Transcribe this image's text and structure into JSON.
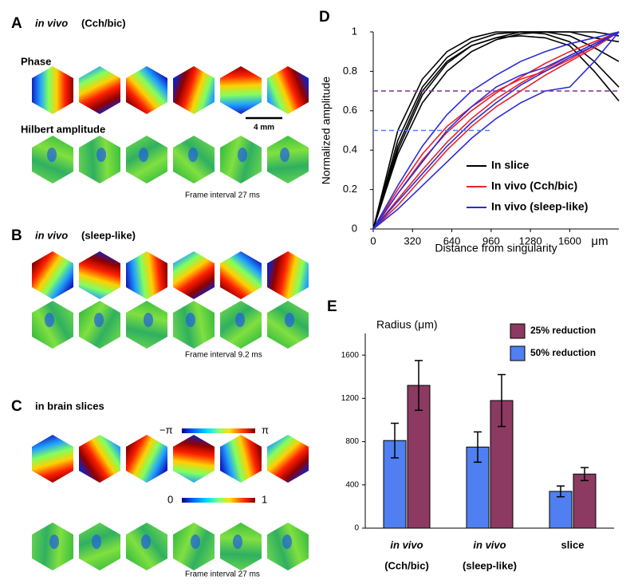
{
  "panels": [
    {
      "letter": "A",
      "title": [
        "in vivo",
        "(Cch/bic)"
      ],
      "row_labels": [
        "Phase",
        "Hilbert amplitude"
      ],
      "scale_bar": "4 mm",
      "note": "Frame interval 27 ms"
    },
    {
      "letter": "B",
      "title": [
        "in vivo",
        "(sleep-like)"
      ],
      "note": "Frame interval 9.2 ms"
    },
    {
      "letter": "C",
      "title": [
        "in brain slices"
      ],
      "colorbars": [
        [
          "−π",
          "π"
        ],
        [
          "0",
          "1"
        ]
      ],
      "note": "Frame interval 27 ms"
    }
  ],
  "chart_data": [
    {
      "type": "line",
      "panel": "D",
      "ylabel": "Normalized amplitude",
      "xlabel": "Distance from singularity",
      "x_unit": "μm",
      "x": [
        0,
        200,
        400,
        600,
        800,
        1000,
        1200,
        1400,
        1600,
        1800,
        2000
      ],
      "xlim": [
        0,
        2000
      ],
      "xticks": [
        0,
        320,
        640,
        960,
        1280,
        1600
      ],
      "ylim": [
        0,
        1
      ],
      "yticks": [
        0,
        0.2,
        0.4,
        0.6,
        0.8,
        1
      ],
      "hlines": [
        {
          "y": 0.7,
          "x_end": 2000,
          "color": "#8e3a9e"
        },
        {
          "y": 0.5,
          "x_end": 960,
          "color": "#4a86e8"
        }
      ],
      "groups": [
        {
          "name": "In slice",
          "color": "#000000",
          "curves": [
            [
              0,
              0.45,
              0.72,
              0.87,
              0.95,
              0.99,
              1,
              1,
              0.98,
              0.92,
              0.85
            ],
            [
              0,
              0.4,
              0.68,
              0.84,
              0.93,
              0.97,
              1,
              1,
              1,
              0.97,
              0.95
            ],
            [
              0,
              0.5,
              0.76,
              0.9,
              0.97,
              1,
              1,
              0.99,
              0.95,
              0.85,
              0.72
            ],
            [
              0,
              0.38,
              0.64,
              0.8,
              0.9,
              0.96,
              0.99,
              1,
              1,
              1,
              0.98
            ],
            [
              0,
              0.42,
              0.7,
              0.85,
              0.93,
              0.97,
              0.98,
              0.97,
              0.93,
              0.8,
              0.65
            ]
          ]
        },
        {
          "name": "In vivo (Cch/bic)",
          "color": "#e8212b",
          "curves": [
            [
              0,
              0.15,
              0.3,
              0.44,
              0.56,
              0.66,
              0.74,
              0.81,
              0.88,
              0.94,
              1
            ],
            [
              0,
              0.18,
              0.35,
              0.49,
              0.6,
              0.69,
              0.77,
              0.84,
              0.9,
              0.95,
              1
            ],
            [
              0,
              0.12,
              0.26,
              0.4,
              0.52,
              0.62,
              0.7,
              0.78,
              0.85,
              0.92,
              1
            ],
            [
              0,
              0.2,
              0.38,
              0.52,
              0.62,
              0.7,
              0.76,
              0.8,
              0.86,
              0.93,
              1
            ]
          ]
        },
        {
          "name": "In vivo (sleep-like)",
          "color": "#2b2bd6",
          "curves": [
            [
              0,
              0.22,
              0.42,
              0.58,
              0.7,
              0.78,
              0.85,
              0.9,
              0.94,
              0.97,
              1
            ],
            [
              0,
              0.1,
              0.22,
              0.34,
              0.46,
              0.56,
              0.64,
              0.7,
              0.72,
              0.85,
              1
            ],
            [
              0,
              0.14,
              0.28,
              0.42,
              0.54,
              0.64,
              0.73,
              0.8,
              0.87,
              0.93,
              1
            ],
            [
              0,
              0.18,
              0.34,
              0.5,
              0.62,
              0.72,
              0.78,
              0.82,
              0.88,
              0.94,
              1
            ]
          ]
        }
      ]
    },
    {
      "type": "bar",
      "panel": "E",
      "title": "Radius (μm)",
      "categories": [
        [
          "in vivo",
          "(Cch/bic)"
        ],
        [
          "in vivo",
          "(sleep-like)"
        ],
        [
          "slice"
        ]
      ],
      "ylim": [
        0,
        1800
      ],
      "yticks": [
        0,
        400,
        800,
        1200,
        1600
      ],
      "series": [
        {
          "name": "50% reduction",
          "color": "#4f7ff0",
          "values": [
            810,
            750,
            340
          ],
          "errors": [
            160,
            140,
            50
          ]
        },
        {
          "name": "25% reduction",
          "color": "#8c3a62",
          "values": [
            1320,
            1180,
            500
          ],
          "errors": [
            230,
            240,
            60
          ]
        }
      ]
    }
  ]
}
